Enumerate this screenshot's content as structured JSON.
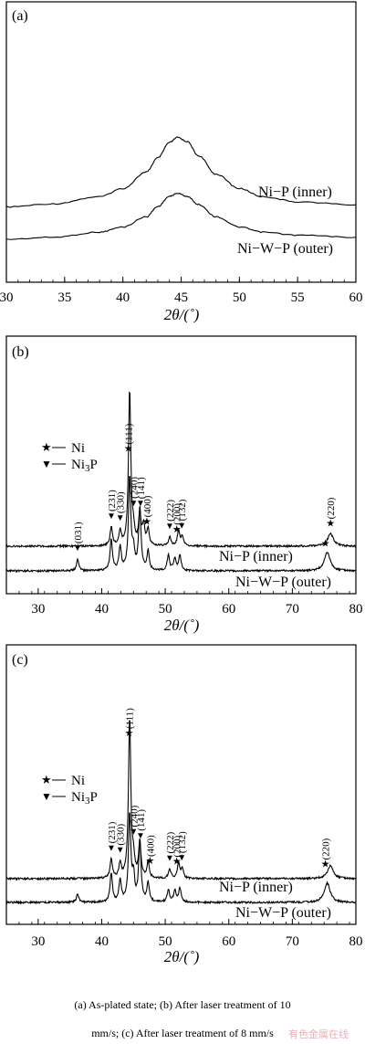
{
  "chart_data": [
    {
      "type": "line",
      "panel_label": "(a)",
      "xlabel": "2θ/(˚)",
      "xlim": [
        30,
        60
      ],
      "x_ticks": [
        "30",
        "35",
        "40",
        "45",
        "50",
        "55",
        "60"
      ],
      "ylabel": "",
      "grid": false,
      "series": [
        {
          "name": "Ni−P (inner)",
          "x": [
            30,
            34,
            38,
            40,
            42,
            43,
            44,
            44.7,
            45.5,
            46.5,
            48,
            50,
            52,
            55,
            60
          ],
          "y": [
            0.12,
            0.15,
            0.22,
            0.3,
            0.46,
            0.6,
            0.75,
            0.8,
            0.76,
            0.62,
            0.44,
            0.3,
            0.22,
            0.17,
            0.14
          ]
        },
        {
          "name": "Ni−W−P (outer)",
          "x": [
            30,
            34,
            38,
            40,
            42,
            43,
            44,
            44.7,
            45.5,
            46.5,
            48,
            50,
            52,
            55,
            60
          ],
          "y": [
            0.0,
            0.02,
            0.07,
            0.12,
            0.22,
            0.32,
            0.42,
            0.45,
            0.42,
            0.34,
            0.22,
            0.12,
            0.07,
            0.04,
            0.02
          ]
        }
      ]
    },
    {
      "type": "line",
      "panel_label": "(b)",
      "xlabel": "2θ/(˚)",
      "xlim": [
        25,
        80
      ],
      "x_ticks": [
        "30",
        "40",
        "50",
        "60",
        "70",
        "80"
      ],
      "ylabel": "",
      "grid": false,
      "legend": [
        "Ni",
        "Ni3P"
      ],
      "series": [
        {
          "name": "Ni−P (inner)",
          "peaks": [
            [
              41.5,
              0.12
            ],
            [
              42.9,
              0.09
            ],
            [
              44.4,
              1.0
            ],
            [
              45.0,
              0.08
            ],
            [
              46.0,
              0.2
            ],
            [
              46.6,
              0.13
            ],
            [
              47.3,
              0.1
            ],
            [
              50.7,
              0.06
            ],
            [
              52.1,
              0.1
            ],
            [
              52.7,
              0.06
            ],
            [
              76.0,
              0.08
            ]
          ]
        },
        {
          "name": "Ni−W−P (outer)",
          "peaks": [
            [
              36.2,
              0.07
            ],
            [
              41.5,
              0.2
            ],
            [
              42.9,
              0.15
            ],
            [
              44.4,
              0.6
            ],
            [
              45.0,
              0.12
            ],
            [
              46.0,
              0.4
            ],
            [
              47.3,
              0.12
            ],
            [
              50.5,
              0.1
            ],
            [
              51.5,
              0.08
            ],
            [
              52.3,
              0.1
            ],
            [
              75.5,
              0.12
            ]
          ]
        }
      ],
      "markers": [
        {
          "symbol": "★",
          "x": 44.2,
          "label": "(111)"
        },
        {
          "symbol": "▼",
          "x": 41.5,
          "label": "(231)"
        },
        {
          "symbol": "▼",
          "x": 42.9,
          "label": "(330)"
        },
        {
          "symbol": "▼",
          "x": 45.0,
          "label": "(240)"
        },
        {
          "symbol": "▼",
          "x": 46.1,
          "label": "(141)"
        },
        {
          "symbol": "★",
          "x": 47.1,
          "label": "(400)"
        },
        {
          "symbol": "▼",
          "x": 50.7,
          "label": "(222)"
        },
        {
          "symbol": "★",
          "x": 51.8,
          "label": "(200)"
        },
        {
          "symbol": "▼",
          "x": 52.6,
          "label": "(132)"
        },
        {
          "symbol": "▼",
          "x": 36.2,
          "label": "(031)"
        },
        {
          "symbol": "★",
          "x": 76.0,
          "label": "(220)"
        },
        {
          "symbol": "★",
          "x": 75.2,
          "label": ""
        }
      ]
    },
    {
      "type": "line",
      "panel_label": "(c)",
      "xlabel": "2θ/(˚)",
      "xlim": [
        25,
        80
      ],
      "x_ticks": [
        "30",
        "40",
        "50",
        "60",
        "70",
        "80"
      ],
      "ylabel": "",
      "grid": false,
      "legend": [
        "Ni",
        "Ni3P"
      ],
      "series": [
        {
          "name": "Ni−P (inner)",
          "peaks": [
            [
              41.5,
              0.12
            ],
            [
              42.9,
              0.09
            ],
            [
              44.4,
              1.0
            ],
            [
              45.0,
              0.1
            ],
            [
              46.0,
              0.22
            ],
            [
              47.3,
              0.1
            ],
            [
              50.7,
              0.06
            ],
            [
              52.1,
              0.1
            ],
            [
              52.7,
              0.06
            ],
            [
              76.0,
              0.08
            ]
          ]
        },
        {
          "name": "Ni−W−P (outer)",
          "peaks": [
            [
              36.2,
              0.05
            ],
            [
              41.5,
              0.18
            ],
            [
              42.9,
              0.14
            ],
            [
              44.4,
              0.55
            ],
            [
              45.0,
              0.15
            ],
            [
              46.0,
              0.38
            ],
            [
              47.3,
              0.12
            ],
            [
              50.5,
              0.08
            ],
            [
              51.5,
              0.07
            ],
            [
              52.3,
              0.09
            ],
            [
              75.5,
              0.12
            ]
          ]
        }
      ],
      "markers": [
        {
          "symbol": "★",
          "x": 44.3,
          "label": "(111)"
        },
        {
          "symbol": "▼",
          "x": 41.5,
          "label": "(231)"
        },
        {
          "symbol": "▼",
          "x": 42.9,
          "label": "(330)"
        },
        {
          "symbol": "▼",
          "x": 45.0,
          "label": "(240)"
        },
        {
          "symbol": "▼",
          "x": 46.1,
          "label": "(141)"
        },
        {
          "symbol": "★",
          "x": 47.6,
          "label": "(400)"
        },
        {
          "symbol": "▼",
          "x": 50.7,
          "label": "(222)"
        },
        {
          "symbol": "★",
          "x": 51.8,
          "label": "(200)"
        },
        {
          "symbol": "▼",
          "x": 52.6,
          "label": "(132)"
        },
        {
          "symbol": "★",
          "x": 75.2,
          "label": "(220)"
        }
      ]
    }
  ],
  "caption_line1": "(a) As-plated state; (b) After laser treatment of 10",
  "caption_line2": "mm/s; (c) After laser treatment of 8 mm/s",
  "watermark": "有色金属在线"
}
